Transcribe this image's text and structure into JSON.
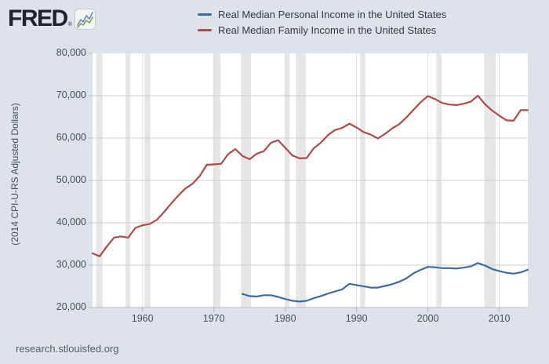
{
  "header": {
    "logo_text": "FRED",
    "logo_registered": "®"
  },
  "legend": [
    {
      "label": "Real Median Personal Income in the United States",
      "color": "#3f6ba3"
    },
    {
      "label": "Real Median Family Income in the United States",
      "color": "#b04a45"
    }
  ],
  "footer": {
    "url": "research.stlouisfed.org"
  },
  "colors": {
    "page_bg": "#dde3e9",
    "plot_bg": "#ffffff",
    "grid_h": "#cccccc",
    "grid_v": "#dadee1",
    "axis": "#b3bac1",
    "recession": "#e6e6e6",
    "text": "#474f57"
  },
  "chart_data": {
    "type": "line",
    "title": "",
    "xlabel": "",
    "ylabel": "(2014 CPI-U-RS Adjusted Dollars)",
    "x_range": [
      1953,
      2014
    ],
    "ylim": [
      20000,
      80000
    ],
    "grid": true,
    "legend_position": "top",
    "x_ticks": [
      1960,
      1970,
      1980,
      1990,
      2000,
      2010
    ],
    "y_ticks": [
      20000,
      30000,
      40000,
      50000,
      60000,
      70000,
      80000
    ],
    "recession_shading": [
      [
        1953.5,
        1954.4
      ],
      [
        1957.6,
        1958.3
      ],
      [
        1960.3,
        1961.1
      ],
      [
        1969.9,
        1970.9
      ],
      [
        1973.8,
        1975.2
      ],
      [
        1980.0,
        1980.6
      ],
      [
        1981.5,
        1982.9
      ],
      [
        1990.5,
        1991.2
      ],
      [
        2001.2,
        2001.9
      ],
      [
        2007.9,
        2009.5
      ]
    ],
    "series": [
      {
        "name": "Real Median Personal Income in the United States",
        "color": "#3f6ba3",
        "x_start": 1974,
        "values": [
          23200,
          22700,
          22600,
          22900,
          22900,
          22500,
          22000,
          21600,
          21400,
          21600,
          22200,
          22700,
          23300,
          23800,
          24300,
          25600,
          25300,
          25000,
          24700,
          24700,
          25100,
          25500,
          26100,
          26900,
          28100,
          28900,
          29600,
          29500,
          29300,
          29300,
          29200,
          29400,
          29700,
          30500,
          29900,
          29100,
          28600,
          28200,
          28000,
          28300,
          28900
        ]
      },
      {
        "name": "Real Median Family Income in the United States",
        "color": "#b04a45",
        "x_start": 1953,
        "values": [
          32800,
          32100,
          34400,
          36500,
          36800,
          36500,
          38800,
          39400,
          39700,
          40700,
          42500,
          44500,
          46400,
          48100,
          49200,
          51000,
          53700,
          53800,
          53900,
          56200,
          57400,
          55800,
          55000,
          56300,
          56900,
          58900,
          59500,
          57700,
          55900,
          55200,
          55300,
          57600,
          58900,
          60700,
          61900,
          62400,
          63400,
          62500,
          61400,
          60800,
          59900,
          61000,
          62300,
          63300,
          64900,
          66700,
          68500,
          69900,
          69200,
          68300,
          67900,
          67800,
          68100,
          68600,
          70000,
          68000,
          66500,
          65300,
          64200,
          64100,
          66600,
          66600
        ]
      }
    ]
  }
}
